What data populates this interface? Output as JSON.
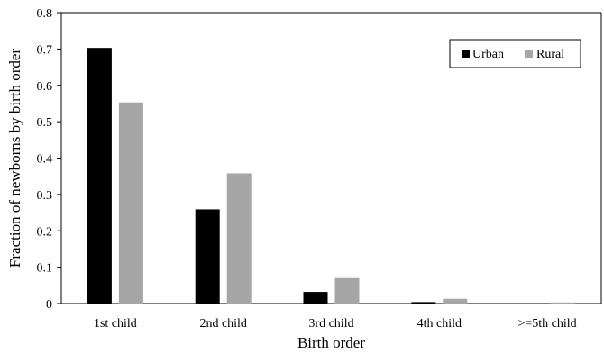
{
  "chart_data": {
    "type": "bar",
    "title": "",
    "xlabel": "Birth order",
    "ylabel": "Fraction of newborns by birth order",
    "categories": [
      "1st child",
      "2nd child",
      "3rd child",
      "4th child",
      ">=5th child"
    ],
    "series": [
      {
        "name": "Urban",
        "values": [
          0.703,
          0.259,
          0.032,
          0.004,
          0.001
        ]
      },
      {
        "name": "Rural",
        "values": [
          0.553,
          0.358,
          0.07,
          0.013,
          0.003
        ]
      }
    ],
    "ylim": [
      0,
      0.8
    ],
    "yticks": [
      "0",
      "0.1",
      "0.2",
      "0.3",
      "0.4",
      "0.5",
      "0.6",
      "0.7",
      "0.8"
    ],
    "grid": false,
    "legend_position": "top-right",
    "colors": {
      "Urban": "#000000",
      "Rural": "#a6a6a6"
    }
  }
}
